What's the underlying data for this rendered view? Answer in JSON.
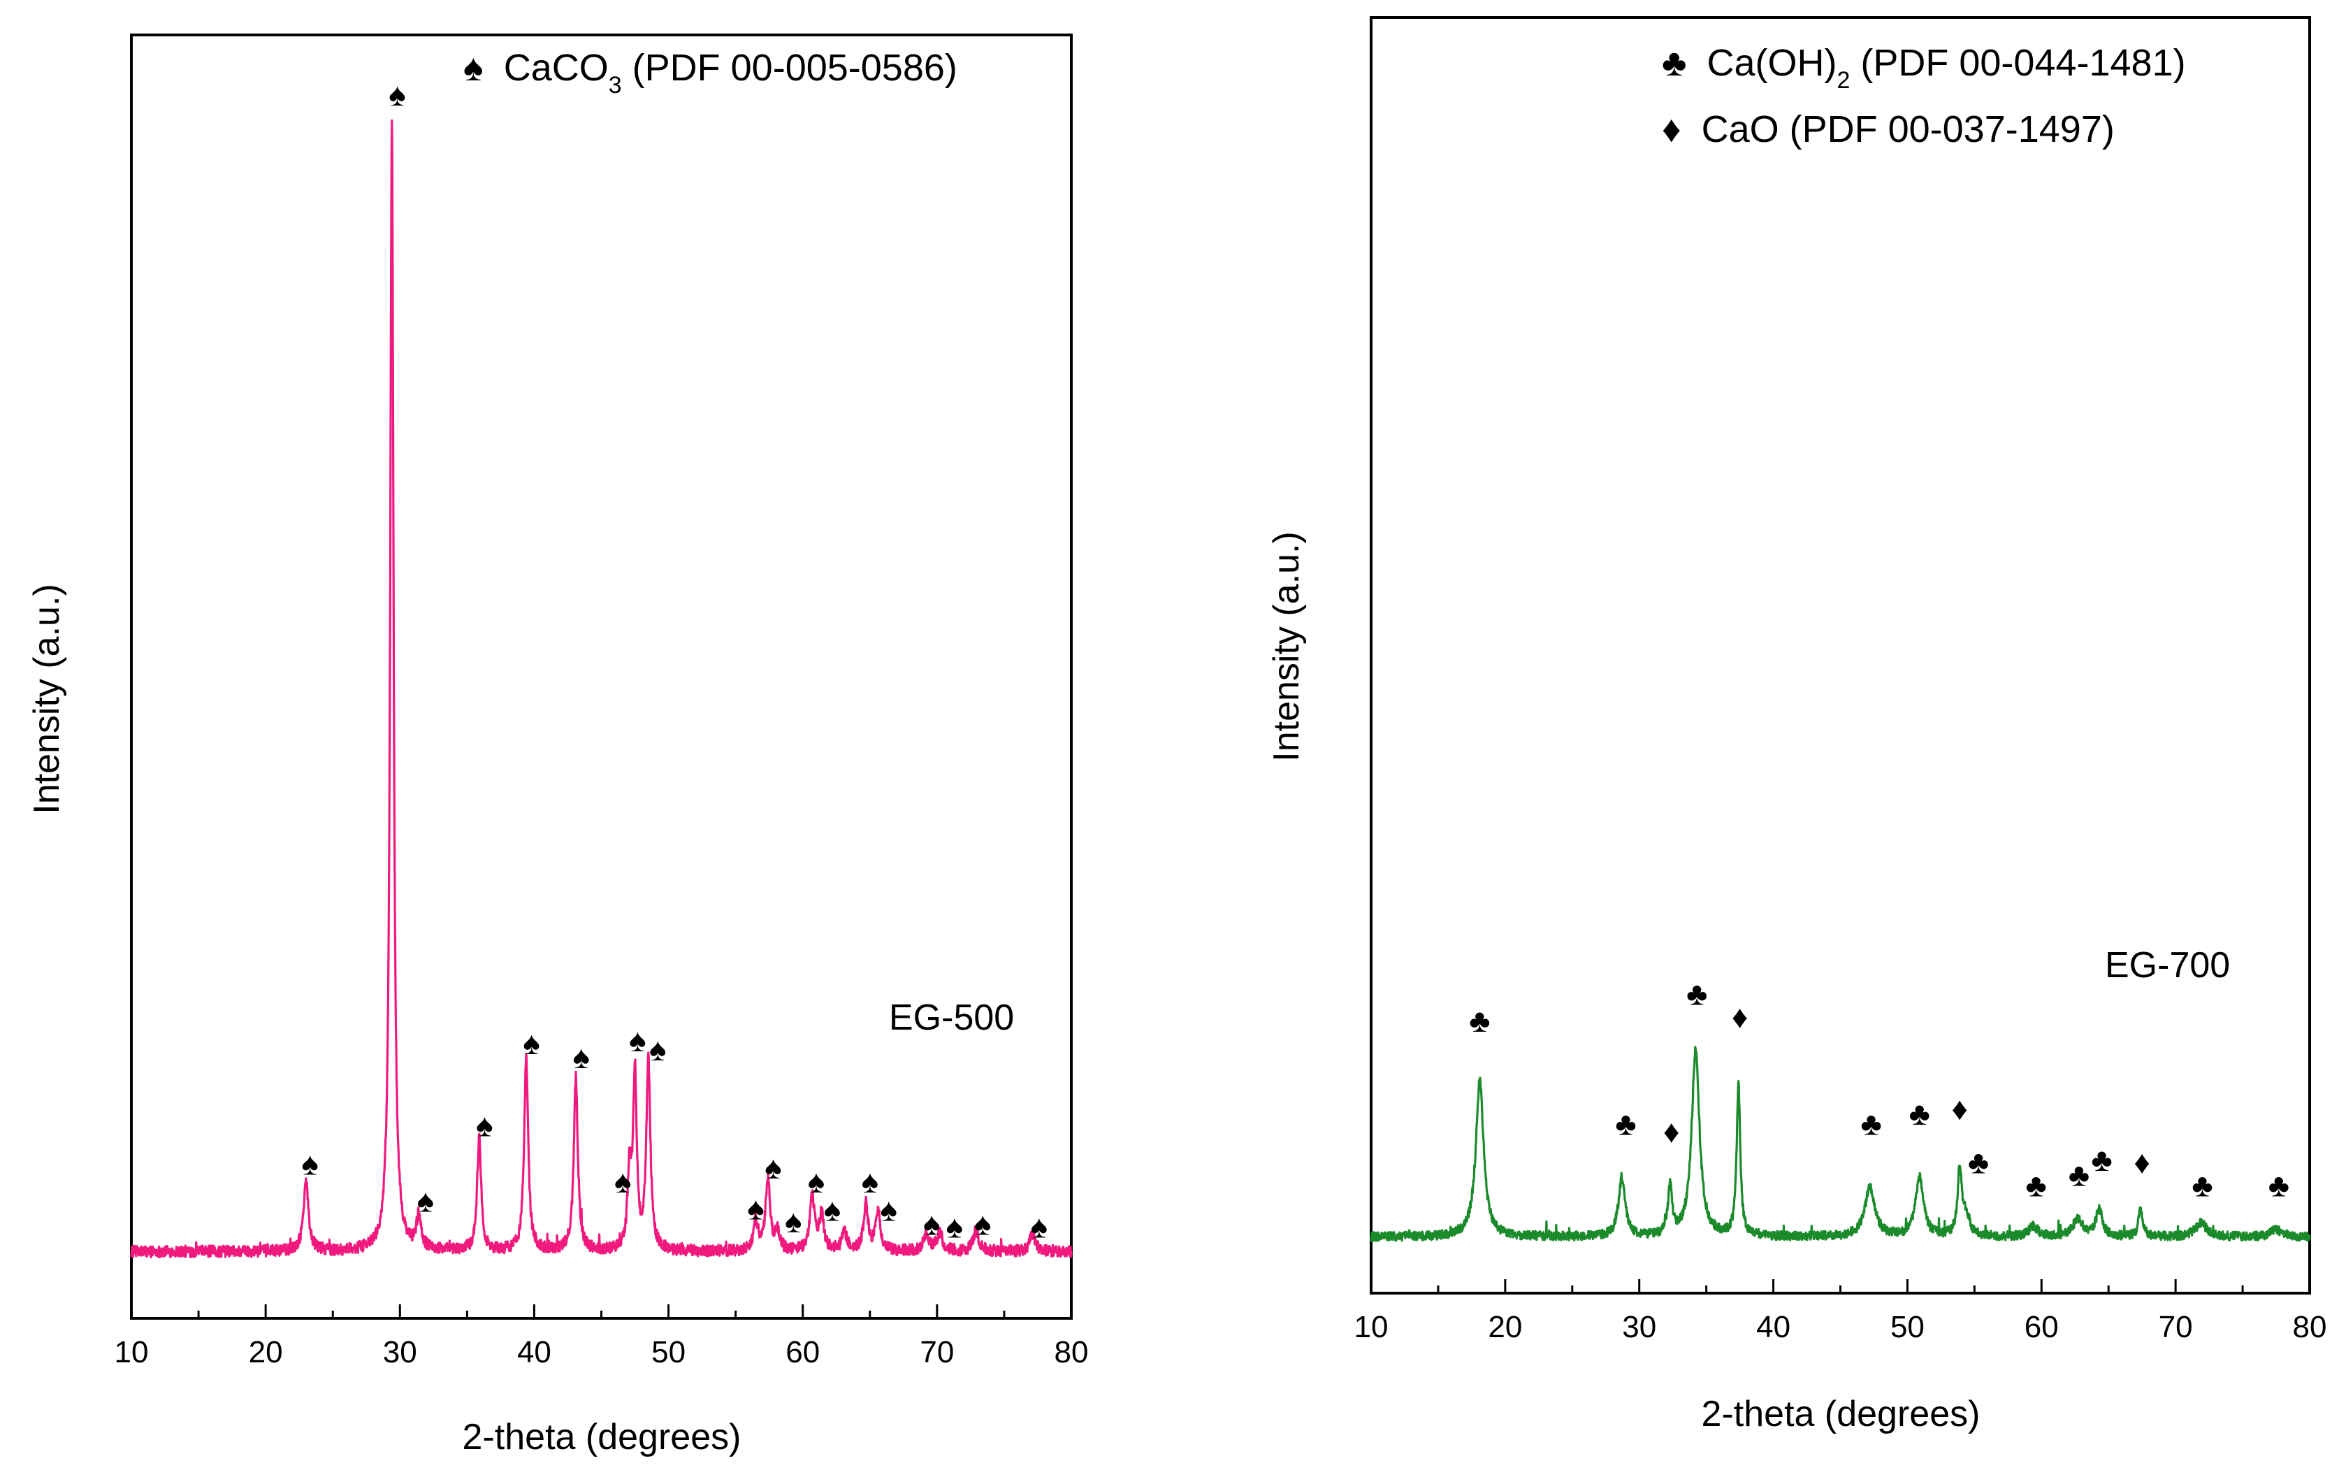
{
  "chart_data": [
    {
      "id": "left",
      "type": "line",
      "sample_label": "EG-500",
      "xlabel": "2-theta (degrees)",
      "ylabel": "Intensity (a.u.)",
      "xlim": [
        10,
        80
      ],
      "ylim": [
        0,
        100
      ],
      "xticks": [
        10,
        20,
        30,
        40,
        50,
        60,
        70,
        80
      ],
      "yticks": [],
      "color": "#f0197e",
      "baseline": 5.2,
      "noise": 0.45,
      "legend": [
        {
          "symbol": "♠",
          "pre": "CaCO",
          "sub": "3",
          "post": " (PDF 00-005-0586)"
        }
      ],
      "peaks": [
        {
          "x": 23.0,
          "h": 5.5,
          "w": 0.22
        },
        {
          "x": 29.4,
          "h": 88,
          "w": 0.15
        },
        {
          "x": 31.4,
          "h": 2.5,
          "w": 0.22
        },
        {
          "x": 35.9,
          "h": 8.8,
          "w": 0.18
        },
        {
          "x": 39.4,
          "h": 15,
          "w": 0.18
        },
        {
          "x": 43.1,
          "h": 13.5,
          "w": 0.18
        },
        {
          "x": 47.1,
          "h": 6,
          "w": 0.16
        },
        {
          "x": 47.5,
          "h": 13.7,
          "w": 0.16
        },
        {
          "x": 48.5,
          "h": 14.8,
          "w": 0.18
        },
        {
          "x": 56.5,
          "h": 2.2,
          "w": 0.22
        },
        {
          "x": 57.4,
          "h": 5.5,
          "w": 0.2
        },
        {
          "x": 58.1,
          "h": 1.5,
          "w": 0.2
        },
        {
          "x": 60.7,
          "h": 4.2,
          "w": 0.22
        },
        {
          "x": 61.4,
          "h": 2.8,
          "w": 0.2
        },
        {
          "x": 63.1,
          "h": 1.5,
          "w": 0.22
        },
        {
          "x": 64.7,
          "h": 3.6,
          "w": 0.2
        },
        {
          "x": 65.6,
          "h": 3.2,
          "w": 0.2
        },
        {
          "x": 69.2,
          "h": 1.3,
          "w": 0.25
        },
        {
          "x": 70.2,
          "h": 1.4,
          "w": 0.25
        },
        {
          "x": 72.9,
          "h": 1.6,
          "w": 0.25
        },
        {
          "x": 77.1,
          "h": 1.4,
          "w": 0.25
        }
      ],
      "markers": [
        {
          "x": 23.3,
          "y": 11.2,
          "symbol": "♠"
        },
        {
          "x": 29.8,
          "y": 94.5,
          "symbol": "♠"
        },
        {
          "x": 31.9,
          "y": 8.3,
          "symbol": "♠"
        },
        {
          "x": 36.3,
          "y": 14.2,
          "symbol": "♠"
        },
        {
          "x": 39.8,
          "y": 20.6,
          "symbol": "♠"
        },
        {
          "x": 43.5,
          "y": 19.5,
          "symbol": "♠"
        },
        {
          "x": 46.6,
          "y": 9.8,
          "symbol": "♠"
        },
        {
          "x": 47.7,
          "y": 20.8,
          "symbol": "♠"
        },
        {
          "x": 49.2,
          "y": 20.1,
          "symbol": "♠"
        },
        {
          "x": 56.5,
          "y": 7.7,
          "symbol": "♠"
        },
        {
          "x": 57.8,
          "y": 10.9,
          "symbol": "♠"
        },
        {
          "x": 59.3,
          "y": 6.7,
          "symbol": "♠"
        },
        {
          "x": 61.0,
          "y": 9.8,
          "symbol": "♠"
        },
        {
          "x": 62.2,
          "y": 7.6,
          "symbol": "♠"
        },
        {
          "x": 65.0,
          "y": 9.8,
          "symbol": "♠"
        },
        {
          "x": 66.4,
          "y": 7.6,
          "symbol": "♠"
        },
        {
          "x": 69.6,
          "y": 6.5,
          "symbol": "♠"
        },
        {
          "x": 71.3,
          "y": 6.3,
          "symbol": "♠"
        },
        {
          "x": 73.4,
          "y": 6.5,
          "symbol": "♠"
        },
        {
          "x": 77.6,
          "y": 6.3,
          "symbol": "♠"
        }
      ]
    },
    {
      "id": "right",
      "type": "line",
      "sample_label": "EG-700",
      "xlabel": "2-theta (degrees)",
      "ylabel": "Intensity (a.u.)",
      "xlim": [
        10,
        80
      ],
      "ylim": [
        0,
        100
      ],
      "xticks": [
        10,
        20,
        30,
        40,
        50,
        60,
        70,
        80
      ],
      "yticks": [],
      "color": "#1a8a2a",
      "baseline": 4.4,
      "noise": 0.35,
      "legend": [
        {
          "symbol": "♣",
          "pre": "Ca(OH)",
          "sub": "2",
          "post": " (PDF 00-044-1481)"
        },
        {
          "symbol": "♦",
          "pre": "CaO (PDF 00-037-1497)",
          "sub": "",
          "post": ""
        }
      ],
      "peaks": [
        {
          "x": 18.1,
          "h": 12.2,
          "w": 0.35
        },
        {
          "x": 28.7,
          "h": 4.5,
          "w": 0.3
        },
        {
          "x": 32.3,
          "h": 3.8,
          "w": 0.18
        },
        {
          "x": 34.2,
          "h": 14.6,
          "w": 0.35
        },
        {
          "x": 37.4,
          "h": 11.8,
          "w": 0.16
        },
        {
          "x": 47.2,
          "h": 3.8,
          "w": 0.45
        },
        {
          "x": 50.9,
          "h": 4.6,
          "w": 0.35
        },
        {
          "x": 53.9,
          "h": 5.1,
          "w": 0.2
        },
        {
          "x": 54.4,
          "h": 1.5,
          "w": 0.3
        },
        {
          "x": 59.4,
          "h": 0.8,
          "w": 0.4
        },
        {
          "x": 62.7,
          "h": 1.3,
          "w": 0.45
        },
        {
          "x": 64.3,
          "h": 2.1,
          "w": 0.3
        },
        {
          "x": 67.4,
          "h": 2.2,
          "w": 0.18
        },
        {
          "x": 71.9,
          "h": 1.1,
          "w": 0.5
        },
        {
          "x": 77.5,
          "h": 0.6,
          "w": 0.5
        }
      ],
      "markers": [
        {
          "x": 18.1,
          "y": 20.5,
          "symbol": "♣"
        },
        {
          "x": 29.0,
          "y": 12.4,
          "symbol": "♣"
        },
        {
          "x": 32.4,
          "y": 11.8,
          "symbol": "♦"
        },
        {
          "x": 34.3,
          "y": 22.6,
          "symbol": "♣"
        },
        {
          "x": 37.5,
          "y": 20.8,
          "symbol": "♦"
        },
        {
          "x": 47.3,
          "y": 12.4,
          "symbol": "♣"
        },
        {
          "x": 50.9,
          "y": 13.2,
          "symbol": "♣"
        },
        {
          "x": 53.9,
          "y": 13.6,
          "symbol": "♦"
        },
        {
          "x": 55.3,
          "y": 9.4,
          "symbol": "♣"
        },
        {
          "x": 59.6,
          "y": 7.6,
          "symbol": "♣"
        },
        {
          "x": 62.8,
          "y": 8.4,
          "symbol": "♣"
        },
        {
          "x": 64.5,
          "y": 9.6,
          "symbol": "♣"
        },
        {
          "x": 67.5,
          "y": 9.4,
          "symbol": "♦"
        },
        {
          "x": 72.0,
          "y": 7.6,
          "symbol": "♣"
        },
        {
          "x": 77.7,
          "y": 7.6,
          "symbol": "♣"
        }
      ]
    }
  ]
}
